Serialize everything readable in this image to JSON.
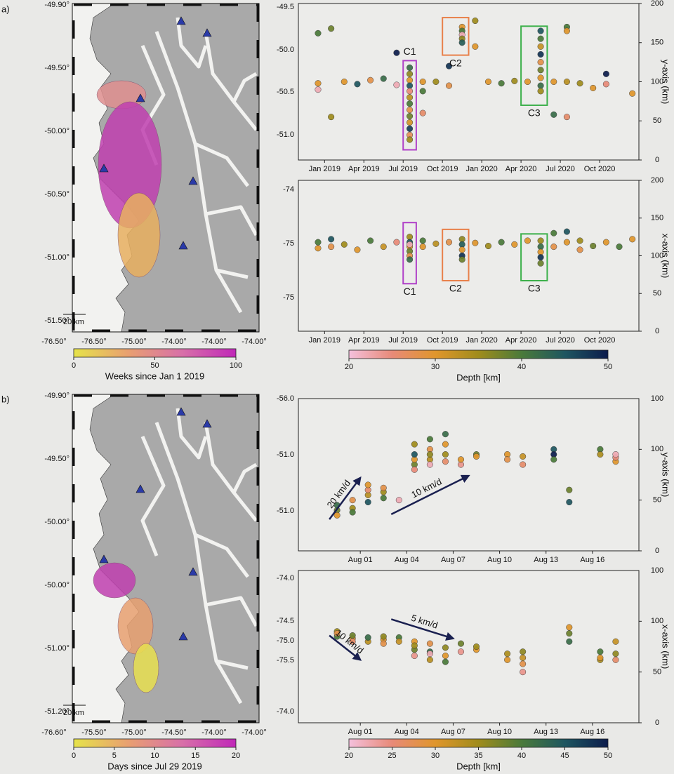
{
  "panel_labels": [
    "a)",
    "b)"
  ],
  "maps": [
    {
      "xlabels": [
        "-76.50°",
        "-76.50°",
        "-75.00°",
        "-74.00°",
        "-74.00°",
        "-74.00°"
      ],
      "ylabels": [
        "-49.90°",
        "-49.50°",
        "-50.00°",
        "-50.50°",
        "-51.00°",
        "-51.50°"
      ],
      "scale_bar": "20 km"
    },
    {
      "xlabels": [
        "-76.60°",
        "-75.50°",
        "-75.00°",
        "-74.50°",
        "-74.00°",
        "-74.00°"
      ],
      "ylabels": [
        "-49.90°",
        "-49.50°",
        "-50.00°",
        "-50.00°",
        "-51.00°",
        "-51.20°"
      ],
      "scale_bar": "20 km"
    }
  ],
  "colorbars": [
    {
      "label": "Weeks since Jan 1 2019",
      "lim": [
        0,
        100
      ],
      "ticks": [
        0,
        50,
        100
      ],
      "colors": [
        "#e6e34a",
        "#e8a070",
        "#d870a8",
        "#c028b8"
      ]
    },
    {
      "label": "Depth [km]",
      "lim": [
        20,
        50
      ],
      "ticks": [
        20,
        30,
        40,
        50
      ],
      "colors": [
        "#f4c0dc",
        "#e88a78",
        "#e0962c",
        "#a08c1c",
        "#4a7a3a",
        "#1e5660",
        "#0c1c4c"
      ]
    },
    {
      "label": "Days since Jul 29 2019",
      "lim": [
        0,
        20
      ],
      "ticks": [
        0,
        5,
        10,
        15,
        20
      ],
      "colors": [
        "#e6e34a",
        "#e8a070",
        "#d870a8",
        "#c028b8"
      ]
    },
    {
      "label": "Depth [km]",
      "lim": [
        20,
        50
      ],
      "ticks": [
        20,
        25,
        30,
        35,
        40,
        45,
        50
      ],
      "colors": [
        "#f4c0dc",
        "#e88a78",
        "#e0962c",
        "#a08c1c",
        "#4a7a3a",
        "#1e5660",
        "#0c1c4c"
      ]
    }
  ],
  "chart_data": [
    {
      "type": "scatter",
      "ylabels": [
        "-49.5",
        "-50.0",
        "-50.5",
        "-51.0"
      ],
      "y2label": "y-axis (km)",
      "y2lim": [
        0,
        200
      ],
      "y2ticks": [
        0,
        50,
        100,
        150,
        200
      ],
      "xlim": [
        "2018-11",
        "2021-01"
      ],
      "xticks": [
        {
          "value": "2019-01",
          "label": "Jan 2019"
        },
        {
          "value": "2019-04",
          "label": "Apr 2019"
        },
        {
          "value": "2019-07",
          "label": "Jul 2019"
        },
        {
          "value": "2019-10",
          "label": "Oct 2019"
        },
        {
          "value": "2020-01",
          "label": "Jan 2020"
        },
        {
          "value": "2020-04",
          "label": "Apr 2020"
        },
        {
          "value": "2020-07",
          "label": "Jul 2020"
        },
        {
          "value": "2020-10",
          "label": "Oct 2020"
        }
      ],
      "x": [
        "2018-12",
        "2018-12",
        "2018-12",
        "2019-01",
        "2019-01",
        "2019-02",
        "2019-03",
        "2019-04",
        "2019-05",
        "2019-06",
        "2019-06",
        "2019-07",
        "2019-07",
        "2019-07",
        "2019-07",
        "2019-07",
        "2019-07",
        "2019-07",
        "2019-07",
        "2019-07",
        "2019-07",
        "2019-07",
        "2019-07",
        "2019-07",
        "2019-08",
        "2019-08",
        "2019-08",
        "2019-09",
        "2019-10",
        "2019-10",
        "2019-11",
        "2019-11",
        "2019-11",
        "2019-11",
        "2019-11",
        "2019-12",
        "2019-12",
        "2020-01",
        "2020-02",
        "2020-03",
        "2020-04",
        "2020-05",
        "2020-05",
        "2020-05",
        "2020-05",
        "2020-05",
        "2020-05",
        "2020-05",
        "2020-05",
        "2020-05",
        "2020-06",
        "2020-06",
        "2020-07",
        "2020-07",
        "2020-07",
        "2020-07",
        "2020-08",
        "2020-09",
        "2020-10",
        "2020-10",
        "2020-12"
      ],
      "values": [
        162,
        98,
        90,
        168,
        55,
        100,
        97,
        102,
        104,
        137,
        96,
        110,
        102,
        95,
        88,
        80,
        72,
        64,
        56,
        48,
        40,
        32,
        26,
        118,
        100,
        88,
        60,
        100,
        95,
        120,
        170,
        165,
        160,
        155,
        150,
        178,
        145,
        100,
        98,
        101,
        100,
        165,
        155,
        145,
        135,
        125,
        115,
        105,
        95,
        88,
        100,
        58,
        100,
        170,
        165,
        55,
        98,
        92,
        110,
        97,
        85
      ],
      "depth": [
        40,
        30,
        22,
        38,
        35,
        30,
        45,
        28,
        42,
        50,
        22,
        36,
        30,
        45,
        25,
        33,
        40,
        28,
        38,
        31,
        47,
        27,
        35,
        42,
        30,
        40,
        26,
        35,
        28,
        48,
        30,
        40,
        22,
        36,
        44,
        35,
        30,
        30,
        40,
        35,
        30,
        45,
        40,
        32,
        48,
        28,
        38,
        30,
        42,
        35,
        30,
        42,
        33,
        40,
        30,
        26,
        35,
        30,
        50,
        25,
        30
      ],
      "annotations": [
        {
          "text": "C1",
          "color": "#b040c8",
          "x": [
            "2019-07",
            "2019-08"
          ],
          "y": [
            13,
            127
          ]
        },
        {
          "text": "C2",
          "color": "#e8804a",
          "x": [
            "2019-10",
            "2019-12"
          ],
          "y": [
            134,
            182
          ]
        },
        {
          "text": "C3",
          "color": "#3cb04a",
          "x": [
            "2020-04",
            "2020-06"
          ],
          "y": [
            70,
            171
          ]
        }
      ]
    },
    {
      "type": "scatter",
      "ylabels": [
        "-74",
        "-75",
        "-75"
      ],
      "y2label": "x-axis (km)",
      "y2lim": [
        0,
        200
      ],
      "y2ticks": [
        0,
        50,
        100,
        150,
        200
      ],
      "xlim": [
        "2018-11",
        "2021-01"
      ],
      "xticks": [
        {
          "value": "2019-01",
          "label": "Jan 2019"
        },
        {
          "value": "2019-04",
          "label": "Apr 2019"
        },
        {
          "value": "2019-07",
          "label": "Jul 2019"
        },
        {
          "value": "2019-10",
          "label": "Oct 2019"
        },
        {
          "value": "2020-01",
          "label": "Jan 2020"
        },
        {
          "value": "2020-04",
          "label": "Apr 2020"
        },
        {
          "value": "2020-07",
          "label": "Jul 2020"
        },
        {
          "value": "2020-10",
          "label": "Oct 2020"
        }
      ],
      "x": [
        "2018-12",
        "2018-12",
        "2019-01",
        "2019-01",
        "2019-02",
        "2019-03",
        "2019-04",
        "2019-05",
        "2019-06",
        "2019-07",
        "2019-07",
        "2019-07",
        "2019-07",
        "2019-07",
        "2019-07",
        "2019-07",
        "2019-08",
        "2019-08",
        "2019-09",
        "2019-10",
        "2019-11",
        "2019-11",
        "2019-11",
        "2019-11",
        "2019-11",
        "2019-12",
        "2020-01",
        "2020-02",
        "2020-03",
        "2020-04",
        "2020-05",
        "2020-05",
        "2020-05",
        "2020-05",
        "2020-05",
        "2020-06",
        "2020-06",
        "2020-07",
        "2020-07",
        "2020-08",
        "2020-08",
        "2020-09",
        "2020-10",
        "2020-11",
        "2020-12"
      ],
      "values": [
        118,
        110,
        122,
        112,
        115,
        108,
        120,
        112,
        118,
        125,
        118,
        112,
        106,
        100,
        95,
        115,
        112,
        120,
        116,
        118,
        122,
        115,
        108,
        100,
        95,
        117,
        113,
        118,
        115,
        120,
        120,
        112,
        105,
        98,
        90,
        130,
        112,
        132,
        118,
        120,
        108,
        113,
        118,
        112,
        122
      ],
      "depth": [
        40,
        30,
        45,
        28,
        35,
        30,
        40,
        32,
        25,
        35,
        45,
        30,
        38,
        28,
        42,
        22,
        30,
        40,
        33,
        28,
        36,
        44,
        30,
        48,
        38,
        30,
        35,
        40,
        30,
        30,
        35,
        42,
        30,
        48,
        38,
        40,
        28,
        45,
        30,
        35,
        28,
        38,
        30,
        40,
        30
      ],
      "annotations": [
        {
          "text": "C1",
          "color": "#b040c8",
          "x": [
            "2019-07",
            "2019-08"
          ],
          "y": [
            63,
            144
          ]
        },
        {
          "text": "C2",
          "color": "#e8804a",
          "x": [
            "2019-10",
            "2019-12"
          ],
          "y": [
            67,
            135
          ]
        },
        {
          "text": "C3",
          "color": "#3cb04a",
          "x": [
            "2020-04",
            "2020-06"
          ],
          "y": [
            67,
            129
          ]
        }
      ]
    },
    {
      "type": "scatter",
      "ylabels": [
        "-56.0",
        "-51.0",
        "-51.0"
      ],
      "y2label": "y-axis (km)",
      "y2lim": [
        0,
        150
      ],
      "y2ticks": [
        0,
        50,
        100
      ],
      "y2_top_label": "100",
      "xlim": [
        "Jul 28",
        "Aug 19"
      ],
      "xticks": [
        "Aug 01",
        "Aug 04",
        "Aug 07",
        "Aug 10",
        "Aug 13",
        "Aug 16"
      ],
      "x": [
        "Jul 30",
        "Jul 30",
        "Jul 30",
        "Jul 31",
        "Jul 31",
        "Jul 31",
        "Aug 01",
        "Aug 01",
        "Aug 01",
        "Aug 01",
        "Aug 02",
        "Aug 02",
        "Aug 02",
        "Aug 03",
        "Aug 04",
        "Aug 04",
        "Aug 04",
        "Aug 04",
        "Aug 04",
        "Aug 05",
        "Aug 05",
        "Aug 05",
        "Aug 05",
        "Aug 05",
        "Aug 06",
        "Aug 06",
        "Aug 06",
        "Aug 06",
        "Aug 07",
        "Aug 07",
        "Aug 08",
        "Aug 08",
        "Aug 10",
        "Aug 10",
        "Aug 11",
        "Aug 11",
        "Aug 13",
        "Aug 13",
        "Aug 13",
        "Aug 14",
        "Aug 14",
        "Aug 16",
        "Aug 16",
        "Aug 17",
        "Aug 17",
        "Aug 17"
      ],
      "values": [
        40,
        35,
        45,
        42,
        50,
        38,
        55,
        60,
        65,
        48,
        58,
        62,
        52,
        50,
        85,
        90,
        95,
        105,
        80,
        110,
        100,
        90,
        85,
        95,
        115,
        105,
        95,
        88,
        85,
        90,
        95,
        93,
        95,
        90,
        93,
        85,
        100,
        95,
        90,
        60,
        48,
        100,
        95,
        88,
        92,
        95
      ],
      "depth": [
        38,
        30,
        42,
        35,
        28,
        40,
        33,
        26,
        30,
        45,
        35,
        28,
        40,
        22,
        38,
        30,
        45,
        35,
        25,
        40,
        28,
        33,
        22,
        36,
        42,
        30,
        35,
        26,
        24,
        30,
        38,
        30,
        30,
        28,
        32,
        26,
        45,
        50,
        40,
        38,
        45,
        40,
        34,
        30,
        25,
        22
      ],
      "arrows": [
        {
          "text": "20 km/d",
          "x": [
            "Jul 30",
            "Aug 01"
          ],
          "y": [
            31,
            72
          ]
        },
        {
          "text": "10 km/d",
          "x": [
            "Aug 03",
            "Aug 08"
          ],
          "y": [
            36,
            74
          ]
        }
      ]
    },
    {
      "type": "scatter",
      "ylabels": [
        "-74.0",
        "-74.5",
        "-75.0",
        "-75.5",
        "-74.0"
      ],
      "y2label": "x-axis (km)",
      "y2lim": [
        0,
        150
      ],
      "y2ticks": [
        0,
        50,
        100
      ],
      "y2_top_label": "100",
      "xlim": [
        "Jul 28",
        "Aug 19"
      ],
      "xticks": [
        "Aug 01",
        "Aug 04",
        "Aug 07",
        "Aug 10",
        "Aug 13",
        "Aug 16"
      ],
      "x": [
        "Jul 30",
        "Jul 30",
        "Jul 30",
        "Jul 31",
        "Jul 31",
        "Jul 31",
        "Aug 01",
        "Aug 01",
        "Aug 02",
        "Aug 02",
        "Aug 02",
        "Aug 03",
        "Aug 03",
        "Aug 04",
        "Aug 04",
        "Aug 04",
        "Aug 04",
        "Aug 05",
        "Aug 05",
        "Aug 05",
        "Aug 05",
        "Aug 06",
        "Aug 06",
        "Aug 06",
        "Aug 07",
        "Aug 07",
        "Aug 08",
        "Aug 08",
        "Aug 10",
        "Aug 10",
        "Aug 11",
        "Aug 11",
        "Aug 11",
        "Aug 11",
        "Aug 14",
        "Aug 14",
        "Aug 14",
        "Aug 16",
        "Aug 16",
        "Aug 16",
        "Aug 17",
        "Aug 17",
        "Aug 17"
      ],
      "values": [
        90,
        85,
        88,
        83,
        86,
        80,
        80,
        84,
        82,
        85,
        78,
        84,
        80,
        80,
        72,
        66,
        76,
        78,
        70,
        62,
        68,
        74,
        66,
        60,
        78,
        70,
        72,
        75,
        62,
        68,
        58,
        64,
        70,
        50,
        88,
        80,
        94,
        70,
        62,
        64,
        80,
        68,
        62
      ],
      "depth": [
        35,
        40,
        28,
        30,
        38,
        26,
        33,
        42,
        30,
        36,
        28,
        40,
        32,
        30,
        38,
        24,
        35,
        28,
        42,
        33,
        22,
        36,
        30,
        40,
        38,
        24,
        30,
        35,
        30,
        34,
        28,
        32,
        36,
        24,
        38,
        42,
        30,
        40,
        34,
        30,
        32,
        36,
        26
      ],
      "arrows": [
        {
          "text": "5 km/d",
          "x": [
            "Aug 03",
            "Aug 07"
          ],
          "y": [
            102,
            83
          ]
        },
        {
          "text": "10 km/d",
          "x": [
            "Jul 30",
            "Aug 01"
          ],
          "y": [
            86,
            62
          ]
        }
      ]
    }
  ]
}
